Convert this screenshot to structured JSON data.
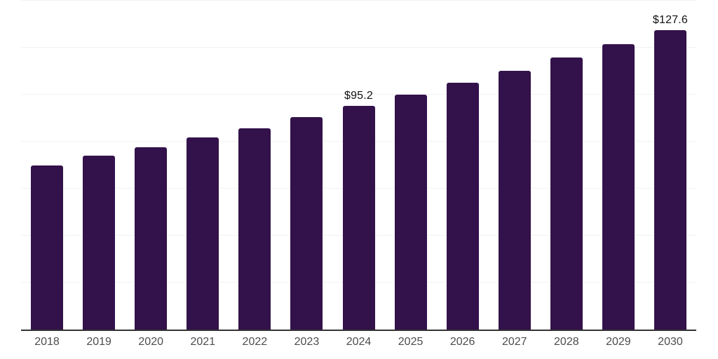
{
  "chart_data": {
    "type": "bar",
    "title": "",
    "xlabel": "",
    "ylabel": "",
    "categories": [
      "2018",
      "2019",
      "2020",
      "2021",
      "2022",
      "2023",
      "2024",
      "2025",
      "2026",
      "2027",
      "2028",
      "2029",
      "2030"
    ],
    "values": [
      70.0,
      73.9,
      77.5,
      81.8,
      85.7,
      90.4,
      95.2,
      100.0,
      105.0,
      110.2,
      115.9,
      121.5,
      127.6
    ],
    "data_labels": {
      "2024": "$95.2",
      "2030": "$127.6"
    },
    "ylim": [
      0,
      140
    ],
    "grid_step": 20,
    "grid": true,
    "legend": false,
    "y_tick_labels_visible": false,
    "colors": {
      "bar": "#33124B",
      "grid": "#F2F2F2",
      "axis": "#333333",
      "tick_label": "#4D4D4D",
      "data_label": "#111111",
      "background": "#FFFFFF"
    }
  }
}
